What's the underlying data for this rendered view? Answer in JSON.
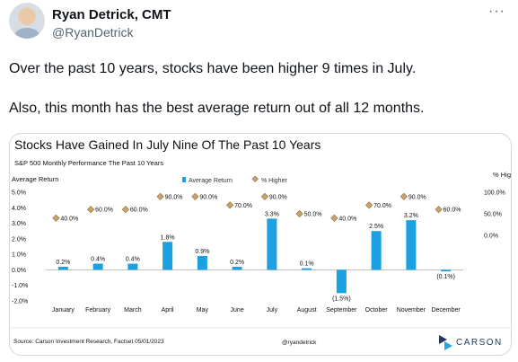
{
  "author": {
    "name": "Ryan Detrick, CMT",
    "handle": "@RyanDetrick"
  },
  "menu_icon": "more-horizontal-icon",
  "tweet": {
    "line1": "Over the past 10 years, stocks have been higher 9 times in July.",
    "line2": "Also, this month has the best average return out of all 12 months."
  },
  "chart_data": {
    "type": "bar",
    "title": "Stocks Have Gained In July Nine Of The Past 10 Years",
    "subtitle": "S&P 500 Monthly Performance The Past 10 Years",
    "ylabel": "Average Return",
    "y2label": "% Higher",
    "legend": [
      "Average Return",
      "% Higher"
    ],
    "categories": [
      "January",
      "February",
      "March",
      "April",
      "May",
      "June",
      "July",
      "August",
      "September",
      "October",
      "November",
      "December"
    ],
    "series": [
      {
        "name": "Average Return",
        "values": [
          0.2,
          0.4,
          0.4,
          1.8,
          0.9,
          0.2,
          3.3,
          0.1,
          -1.5,
          2.5,
          3.2,
          -0.1
        ],
        "labels": [
          "0.2%",
          "0.4%",
          "0.4%",
          "1.8%",
          "0.9%",
          "0.2%",
          "3.3%",
          "0.1%",
          "(1.5%)",
          "2.5%",
          "3.2%",
          "(0.1%)"
        ]
      },
      {
        "name": "% Higher",
        "values": [
          40,
          60,
          60,
          90,
          90,
          70,
          90,
          50,
          40,
          70,
          90,
          60
        ],
        "labels": [
          "40.0%",
          "60.0%",
          "60.0%",
          "90.0%",
          "90.0%",
          "70.0%",
          "90.0%",
          "50.0%",
          "40.0%",
          "70.0%",
          "90.0%",
          "60.0%"
        ]
      }
    ],
    "ylim": [
      -2.0,
      5.0
    ],
    "yticks": [
      "5.0%",
      "4.0%",
      "3.0%",
      "2.0%",
      "1.0%",
      "0.0%",
      "-1.0%",
      "-2.0%"
    ],
    "y2lim": [
      0,
      100
    ],
    "y2ticks": [
      "100.0%",
      "50.0%",
      "0.0%"
    ],
    "colors": {
      "bar": "#1ba1e2",
      "marker": "#c9a46a",
      "marker_stroke": "#8a6d3b"
    },
    "source": "Source: Carson Investment Research, Factset 05/01/2023",
    "watermark": "@ryandetrick",
    "logo": "CARSON"
  }
}
